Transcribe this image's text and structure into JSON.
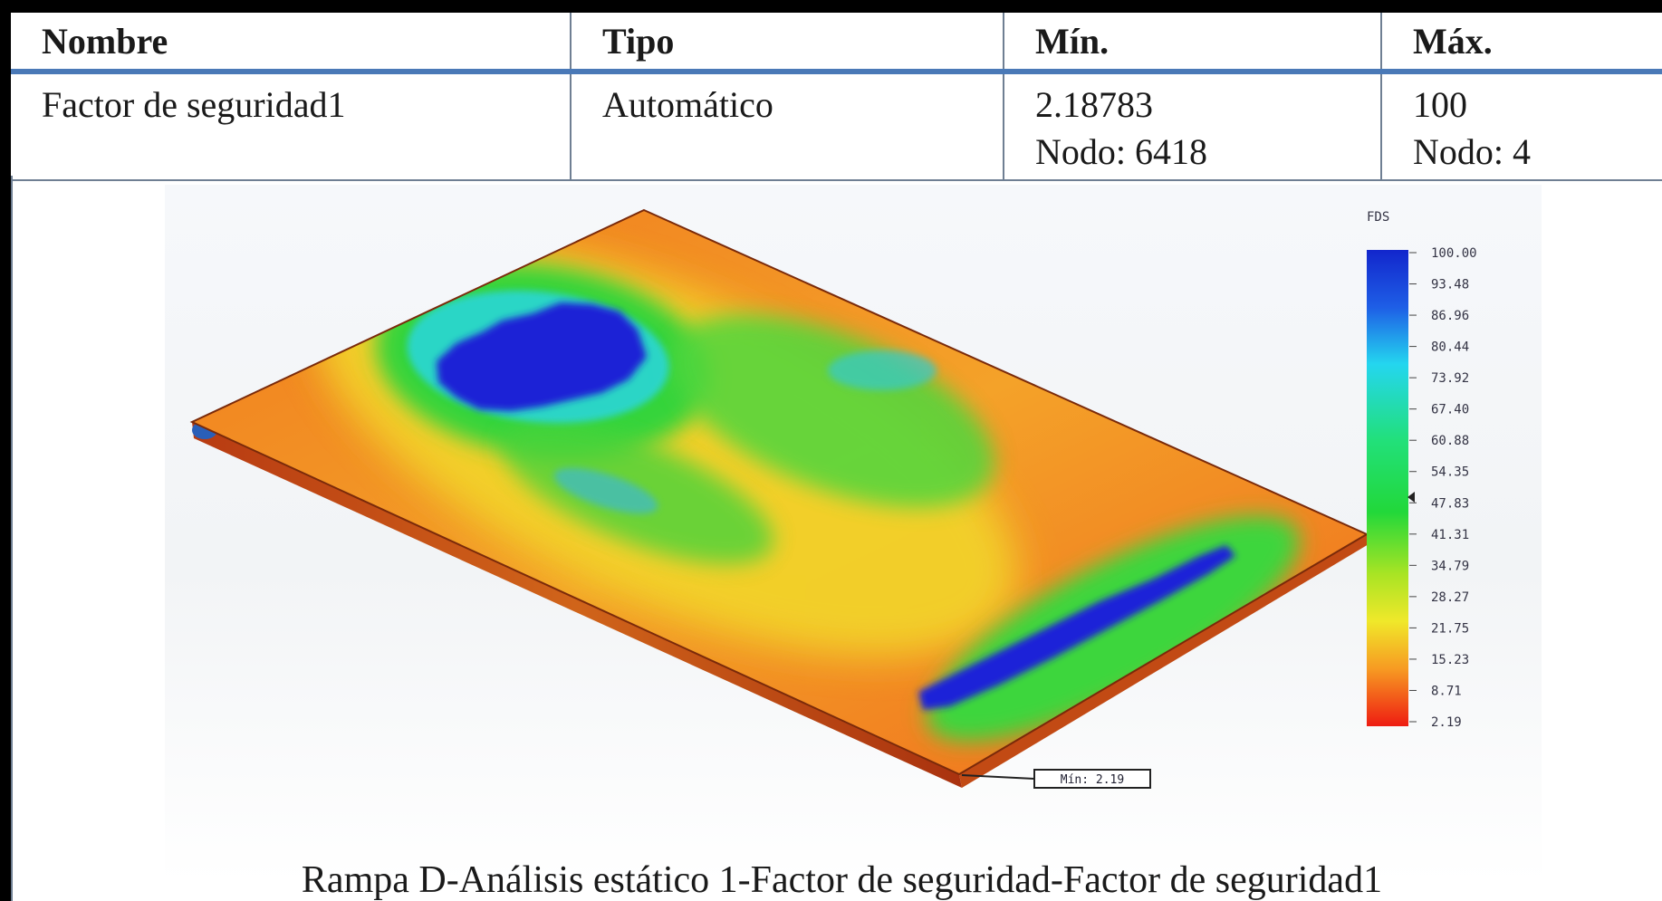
{
  "table": {
    "headers": [
      "Nombre",
      "Tipo",
      "Mín.",
      "Máx."
    ],
    "row": {
      "name": "Factor de seguridad1",
      "type": "Automático",
      "min_value": "2.18783",
      "min_node": "Nodo: 6418",
      "max_value": "100",
      "max_node": "Nodo: 4"
    }
  },
  "plot": {
    "legend_title": "FDS",
    "legend_ticks": [
      "100.00",
      "93.48",
      "86.96",
      "80.44",
      "73.92",
      "67.40",
      "60.88",
      "54.35",
      "47.83",
      "41.31",
      "34.79",
      "28.27",
      "21.75",
      "15.23",
      "8.71",
      "2.19"
    ],
    "min_marker_label": "Mín: 2.19",
    "colors": {
      "high": "#1f2fd8",
      "mid": "#22d43a",
      "low": "#ee2a15"
    }
  },
  "caption": "Rampa D-Análisis estático 1-Factor de seguridad-Factor de seguridad1"
}
